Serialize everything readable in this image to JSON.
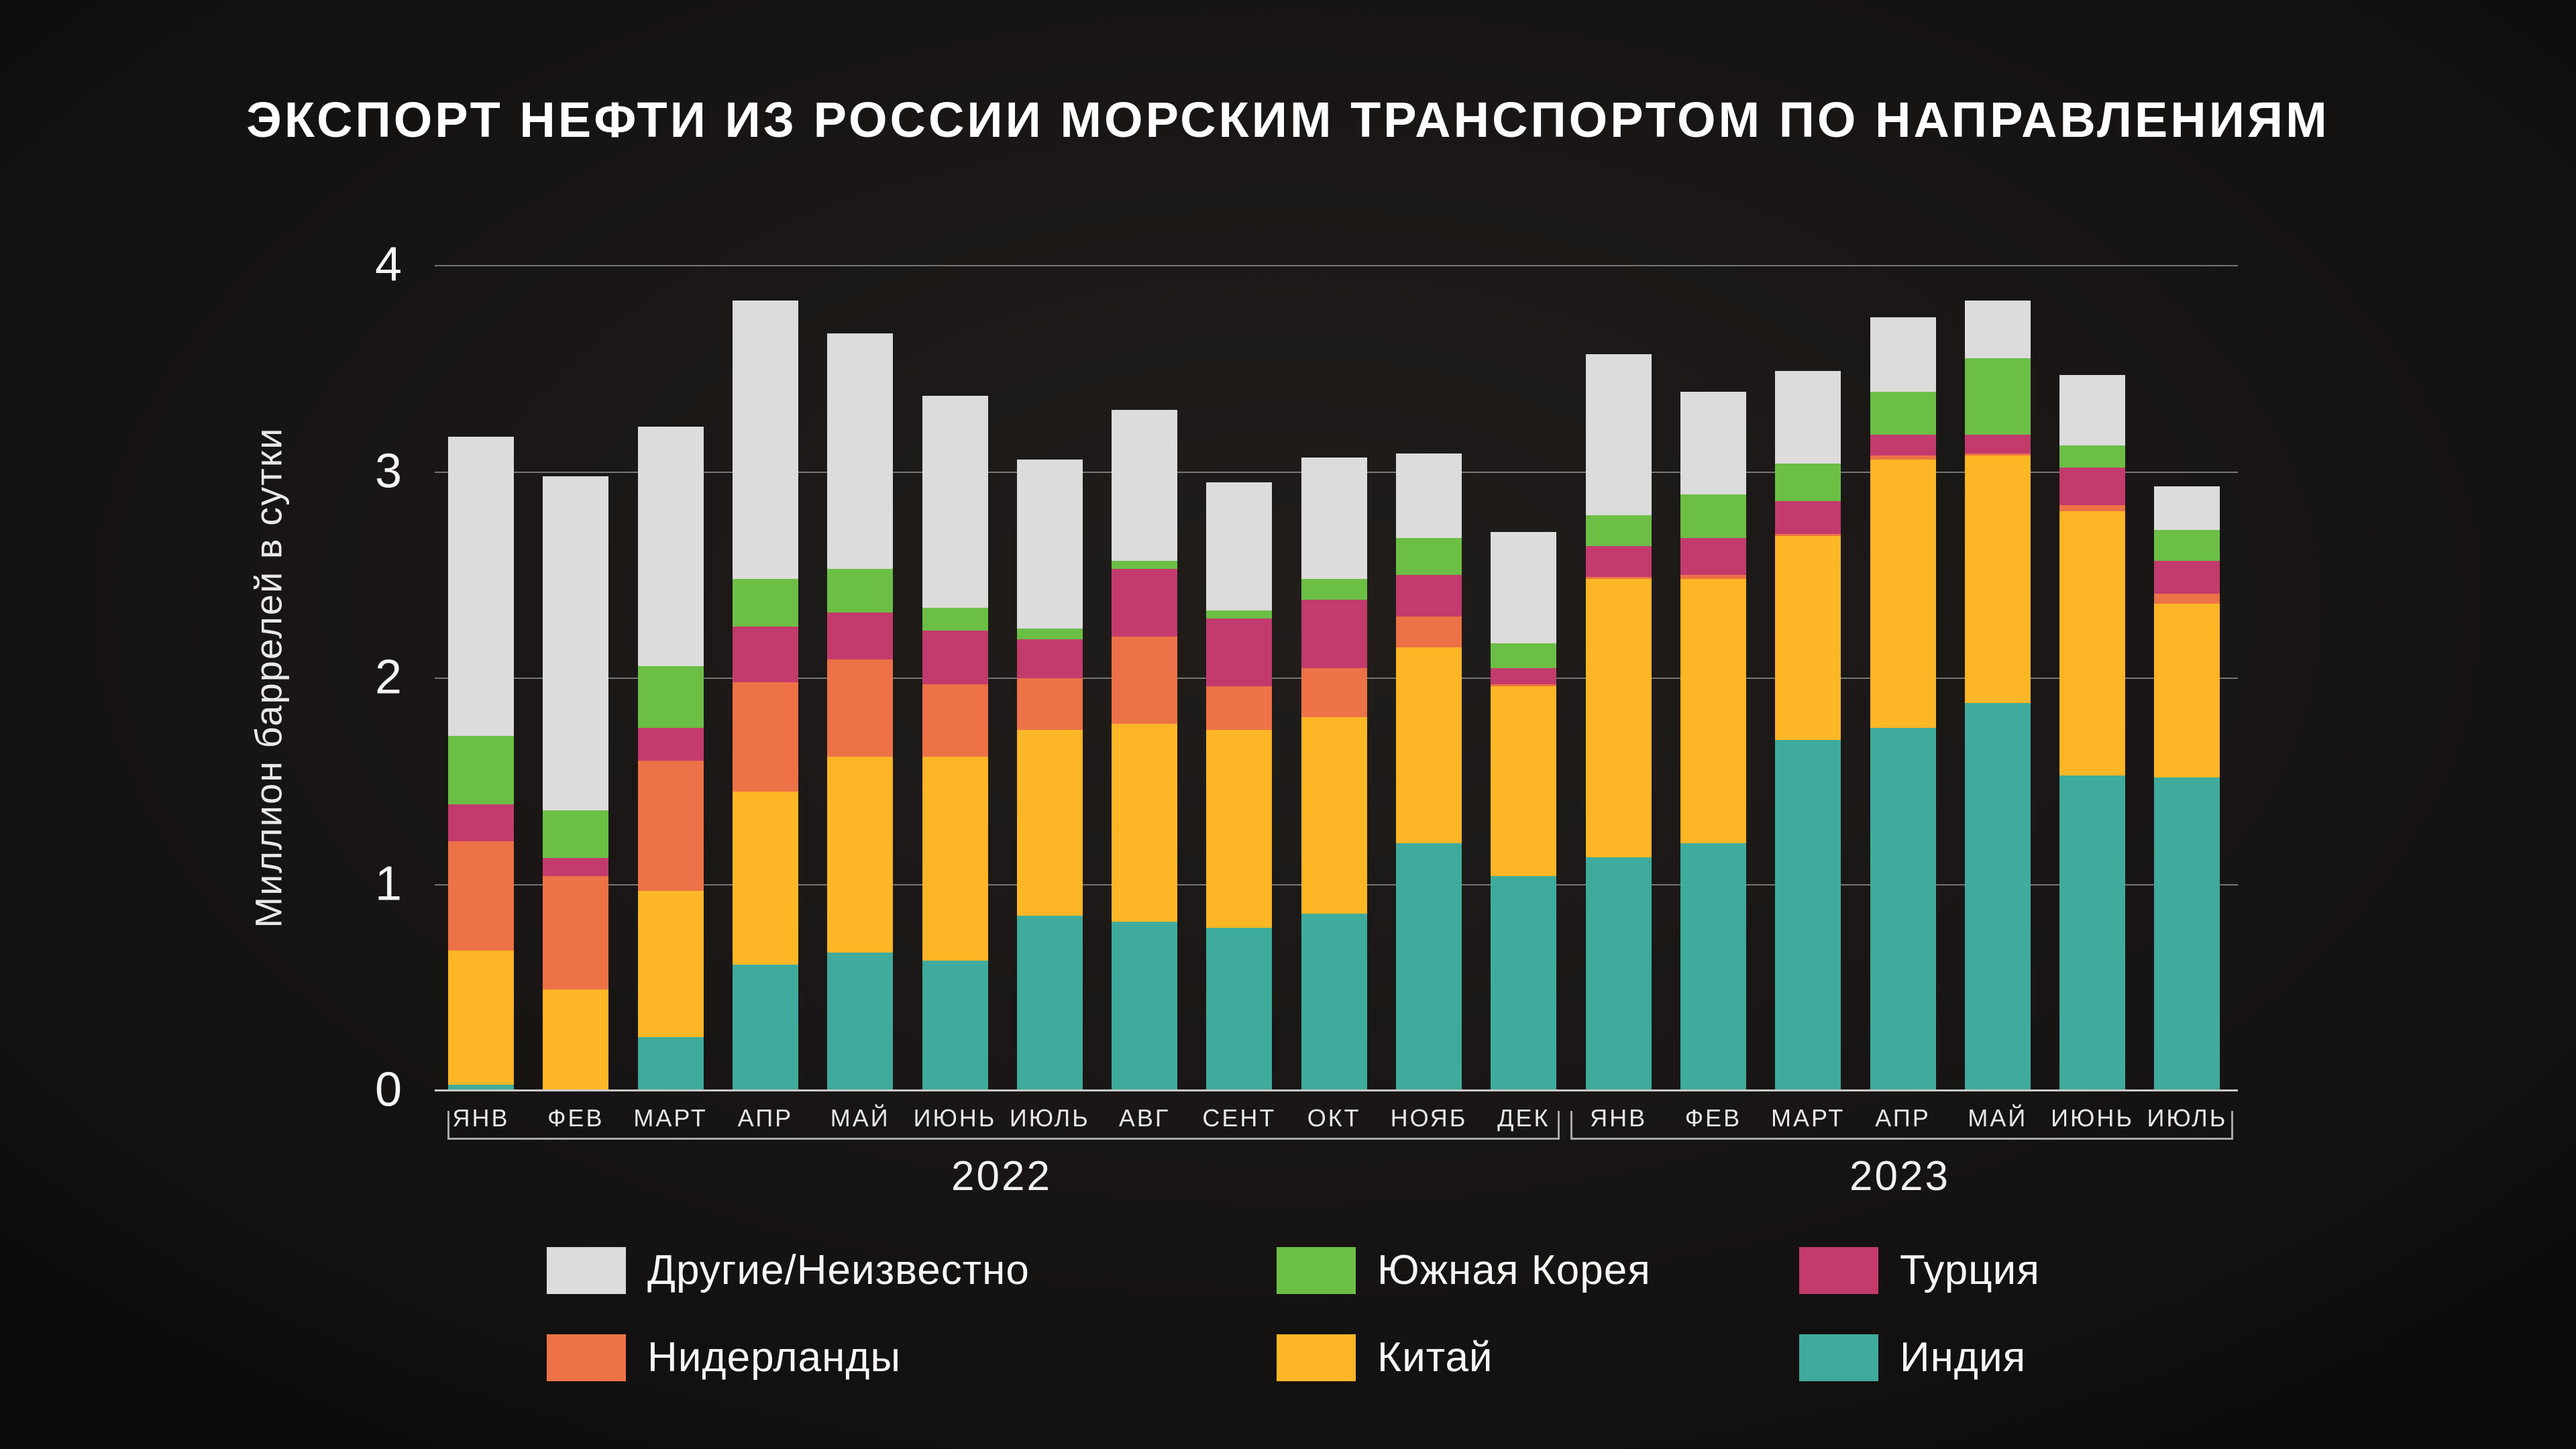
{
  "title": "ЭКСПОРТ НЕФТИ ИЗ РОССИИ МОРСКИМ ТРАНСПОРТОМ ПО НАПРАВЛЕНИЯМ",
  "y_axis": {
    "label": "Миллион баррелей в сутки",
    "ticks": [
      "0",
      "1",
      "2",
      "3",
      "4"
    ]
  },
  "x_axis": {
    "year_groups": [
      {
        "label": "2022",
        "months": 12
      },
      {
        "label": "2023",
        "months": 7
      }
    ]
  },
  "legend": [
    {
      "label": "Другие/Неизвестно",
      "color": "#dcdcdc"
    },
    {
      "label": "Нидерланды",
      "color": "#ed7247"
    },
    {
      "label": "Южная Корея",
      "color": "#6cbf45"
    },
    {
      "label": "Китай",
      "color": "#fcb626"
    },
    {
      "label": "Турция",
      "color": "#c23b6c"
    },
    {
      "label": "Индия",
      "color": "#3fab9c"
    }
  ],
  "colors": {
    "background": "#191615",
    "gridline": "#8d8d8d",
    "baseline": "#c9c9c9",
    "title_text": "#fdfdfd",
    "axis_text": "#e8e8e8"
  },
  "chart_data": {
    "type": "bar",
    "stacked": true,
    "title": "ЭКСПОРТ НЕФТИ ИЗ РОССИИ МОРСКИМ ТРАНСПОРТОМ ПО НАПРАВЛЕНИЯМ",
    "ylabel": "Миллион баррелей в сутки",
    "unit": "million barrels per day",
    "ylim": [
      0,
      4
    ],
    "yticks": [
      0,
      1,
      2,
      3,
      4
    ],
    "grid": true,
    "legend_position": "bottom",
    "categories": [
      "ЯНВ",
      "ФЕВ",
      "МАРТ",
      "АПР",
      "МАЙ",
      "ИЮНЬ",
      "ИЮЛЬ",
      "АВГ",
      "СЕНТ",
      "ОКТ",
      "НОЯБ",
      "ДЕК",
      "ЯНВ",
      "ФЕВ",
      "МАРТ",
      "АПР",
      "МАЙ",
      "ИЮНЬ",
      "ИЮЛЬ"
    ],
    "category_years": [
      "2022",
      "2022",
      "2022",
      "2022",
      "2022",
      "2022",
      "2022",
      "2022",
      "2022",
      "2022",
      "2022",
      "2022",
      "2023",
      "2023",
      "2023",
      "2023",
      "2023",
      "2023",
      "2023"
    ],
    "series": [
      {
        "name": "Индия",
        "color": "#3fab9c",
        "values": [
          0.03,
          0.0,
          0.26,
          0.61,
          0.67,
          0.63,
          0.85,
          0.82,
          0.79,
          0.86,
          1.2,
          1.04,
          1.13,
          1.2,
          1.7,
          1.76,
          1.88,
          1.53,
          1.52
        ]
      },
      {
        "name": "Китай",
        "color": "#fcb626",
        "values": [
          0.65,
          0.49,
          0.71,
          0.84,
          0.95,
          0.99,
          0.9,
          0.96,
          0.96,
          0.95,
          0.95,
          0.92,
          1.35,
          1.28,
          0.99,
          1.3,
          1.2,
          1.28,
          0.84
        ]
      },
      {
        "name": "Нидерланды",
        "color": "#ed7247",
        "values": [
          0.53,
          0.55,
          0.63,
          0.53,
          0.47,
          0.35,
          0.25,
          0.42,
          0.21,
          0.24,
          0.15,
          0.01,
          0.01,
          0.02,
          0.01,
          0.02,
          0.01,
          0.03,
          0.05
        ]
      },
      {
        "name": "Турция",
        "color": "#c23b6c",
        "values": [
          0.18,
          0.09,
          0.16,
          0.27,
          0.23,
          0.26,
          0.19,
          0.33,
          0.33,
          0.33,
          0.2,
          0.08,
          0.15,
          0.18,
          0.16,
          0.1,
          0.09,
          0.18,
          0.16
        ]
      },
      {
        "name": "Южная Корея",
        "color": "#6cbf45",
        "values": [
          0.33,
          0.23,
          0.3,
          0.23,
          0.21,
          0.11,
          0.05,
          0.04,
          0.04,
          0.1,
          0.18,
          0.12,
          0.15,
          0.21,
          0.18,
          0.21,
          0.37,
          0.11,
          0.15
        ]
      },
      {
        "name": "Другие/Неизвестно",
        "color": "#dcdcdc",
        "values": [
          1.45,
          1.62,
          1.16,
          1.35,
          1.14,
          1.03,
          0.82,
          0.73,
          0.62,
          0.59,
          0.41,
          0.54,
          0.78,
          0.5,
          0.45,
          0.36,
          0.28,
          0.34,
          0.21
        ]
      }
    ],
    "totals": [
      3.17,
      2.98,
      3.22,
      3.83,
      3.67,
      3.37,
      3.06,
      3.3,
      2.95,
      3.07,
      3.09,
      2.71,
      3.57,
      3.39,
      3.49,
      3.75,
      3.83,
      3.47,
      2.93
    ]
  }
}
